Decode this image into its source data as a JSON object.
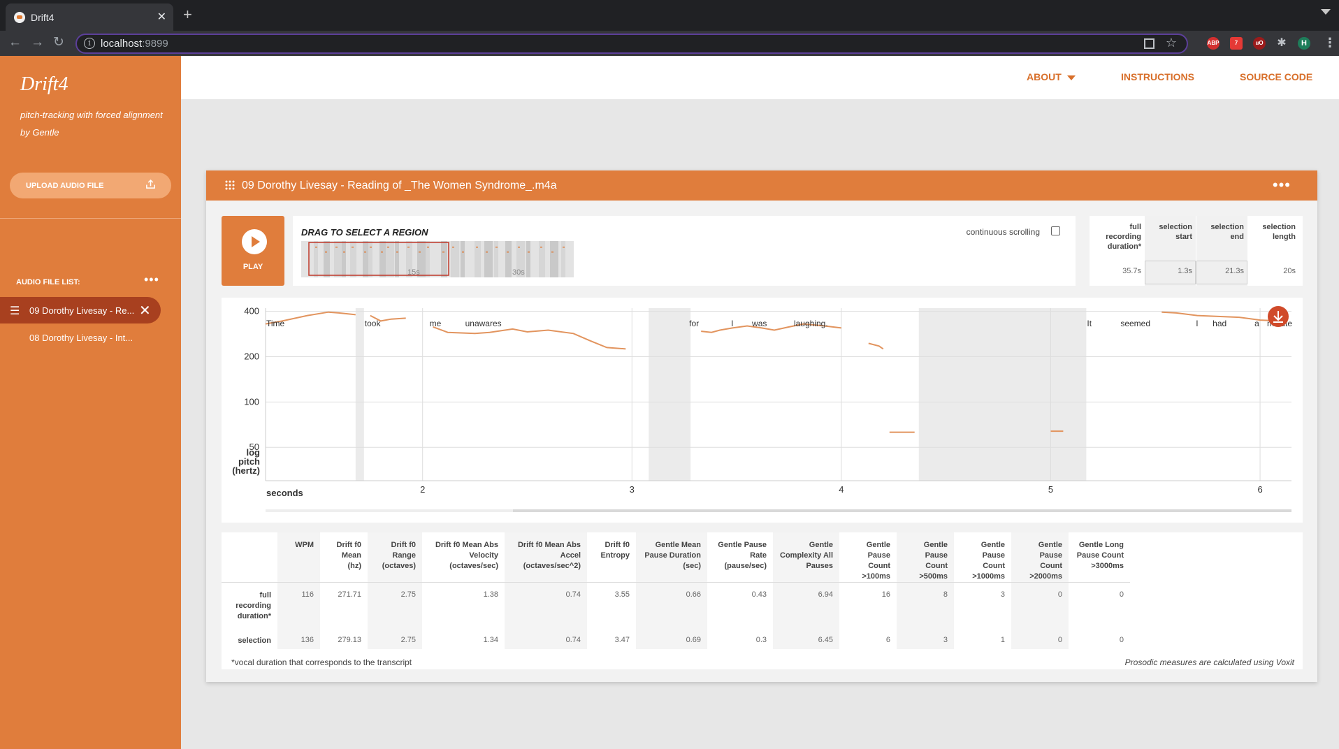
{
  "browser": {
    "tab_title": "Drift4",
    "tab_close": "✕",
    "new_tab": "+",
    "url_host": "localhost",
    "url_port": ":9899",
    "ext_abp": "ABP",
    "ext_badge": "7",
    "ext_ub": "uO",
    "ext_profile": "H"
  },
  "sidebar": {
    "title": "Drift4",
    "subtitle": "pitch-tracking with forced alignment by Gentle",
    "upload_label": "UPLOAD AUDIO FILE",
    "filelist_label": "AUDIO FILE LIST:",
    "files": [
      {
        "name": "09 Dorothy Livesay - Re..."
      },
      {
        "name": "08 Dorothy Livesay - Int..."
      }
    ]
  },
  "nav": {
    "about": "ABOUT",
    "instructions": "INSTRUCTIONS",
    "source_code": "SOURCE CODE"
  },
  "panel": {
    "title": "09 Dorothy Livesay - Reading of _The Women Syndrome_.m4a",
    "play_label": "PLAY",
    "region_label": "DRAG TO SELECT A REGION",
    "continuous_scrolling": "continuous scrolling",
    "overview_ticks": [
      "15s",
      "30s"
    ]
  },
  "durations": {
    "headers": [
      "full recording duration*",
      "selection start",
      "selection end",
      "selection length"
    ],
    "values": [
      "35.7s",
      "1.3s",
      "21.3s",
      "20s"
    ]
  },
  "chart_data": {
    "type": "line",
    "title": "",
    "xlabel": "seconds",
    "ylabel": "log pitch (hertz)",
    "yscale": "log",
    "ylim": [
      30,
      420
    ],
    "xlim": [
      1.25,
      6.15
    ],
    "xticks": [
      2,
      3,
      4,
      5,
      6
    ],
    "yticks": [
      50,
      100,
      200,
      400
    ],
    "grid": true,
    "words": [
      {
        "text": "Time",
        "x": 1.25
      },
      {
        "text": "took",
        "x": 1.72
      },
      {
        "text": "me",
        "x": 2.03
      },
      {
        "text": "unawares",
        "x": 2.2
      },
      {
        "text": "for",
        "x": 3.27
      },
      {
        "text": "I",
        "x": 3.47
      },
      {
        "text": "was",
        "x": 3.57
      },
      {
        "text": "laughing.",
        "x": 3.77
      },
      {
        "text": "It",
        "x": 5.17
      },
      {
        "text": "seemed",
        "x": 5.33
      },
      {
        "text": "I",
        "x": 5.69
      },
      {
        "text": "had",
        "x": 5.77
      },
      {
        "text": "a",
        "x": 5.97
      },
      {
        "text": "minute",
        "x": 6.03
      }
    ],
    "unvoiced_regions": [
      [
        1.68,
        1.72
      ],
      [
        3.08,
        3.28
      ],
      [
        4.37,
        5.17
      ]
    ],
    "series": [
      {
        "points": [
          [
            1.25,
            330
          ],
          [
            1.33,
            345
          ],
          [
            1.45,
            375
          ],
          [
            1.55,
            395
          ],
          [
            1.6,
            390
          ],
          [
            1.68,
            380
          ]
        ]
      },
      {
        "points": [
          [
            1.75,
            375
          ],
          [
            1.8,
            345
          ],
          [
            1.85,
            355
          ],
          [
            1.92,
            360
          ]
        ]
      },
      {
        "points": [
          [
            2.05,
            315
          ],
          [
            2.12,
            290
          ],
          [
            2.25,
            285
          ],
          [
            2.32,
            290
          ],
          [
            2.43,
            305
          ],
          [
            2.5,
            292
          ],
          [
            2.6,
            300
          ],
          [
            2.72,
            285
          ],
          [
            2.8,
            255
          ],
          [
            2.88,
            230
          ],
          [
            2.97,
            225
          ]
        ]
      },
      {
        "points": [
          [
            3.33,
            295
          ],
          [
            3.38,
            290
          ],
          [
            3.42,
            300
          ],
          [
            3.48,
            310
          ],
          [
            3.55,
            320
          ],
          [
            3.62,
            310
          ],
          [
            3.68,
            300
          ],
          [
            3.75,
            315
          ],
          [
            3.82,
            330
          ],
          [
            3.92,
            320
          ],
          [
            4.0,
            310
          ]
        ]
      },
      {
        "points": [
          [
            4.13,
            245
          ],
          [
            4.18,
            235
          ],
          [
            4.2,
            225
          ]
        ]
      },
      {
        "points": [
          [
            4.23,
            63
          ],
          [
            4.35,
            63
          ]
        ]
      },
      {
        "points": [
          [
            5.0,
            64
          ],
          [
            5.06,
            64
          ]
        ]
      },
      {
        "points": [
          [
            5.53,
            395
          ],
          [
            5.6,
            390
          ],
          [
            5.7,
            375
          ],
          [
            5.8,
            370
          ],
          [
            5.9,
            365
          ],
          [
            6.0,
            350
          ],
          [
            6.1,
            345
          ]
        ]
      }
    ]
  },
  "stats": {
    "headers": [
      "WPM",
      "Drift f0 Mean (hz)",
      "Drift f0 Range (octaves)",
      "Drift f0 Mean Abs Velocity (octaves/sec)",
      "Drift f0 Mean Abs Accel (octaves/sec^2)",
      "Drift f0 Entropy",
      "Gentle Mean Pause Duration (sec)",
      "Gentle Pause Rate (pause/sec)",
      "Gentle Complexity All Pauses",
      "Gentle Pause Count >100ms",
      "Gentle Pause Count >500ms",
      "Gentle Pause Count >1000ms",
      "Gentle Pause Count >2000ms",
      "Gentle Long Pause Count >3000ms"
    ],
    "rows": [
      {
        "label": "full recording duration*",
        "values": [
          "116",
          "271.71",
          "2.75",
          "1.38",
          "0.74",
          "3.55",
          "0.66",
          "0.43",
          "6.94",
          "16",
          "8",
          "3",
          "0",
          "0"
        ]
      },
      {
        "label": "selection",
        "values": [
          "136",
          "279.13",
          "2.75",
          "1.34",
          "0.74",
          "3.47",
          "0.69",
          "0.3",
          "6.45",
          "6",
          "3",
          "1",
          "0",
          "0"
        ]
      }
    ],
    "note_left": "*vocal duration that corresponds to the transcript",
    "note_right": "Prosodic measures are calculated using Voxit"
  },
  "colors": {
    "accent": "#e07d3c",
    "accent_dark": "#a8401f",
    "pitch_line": "#e2945e"
  }
}
